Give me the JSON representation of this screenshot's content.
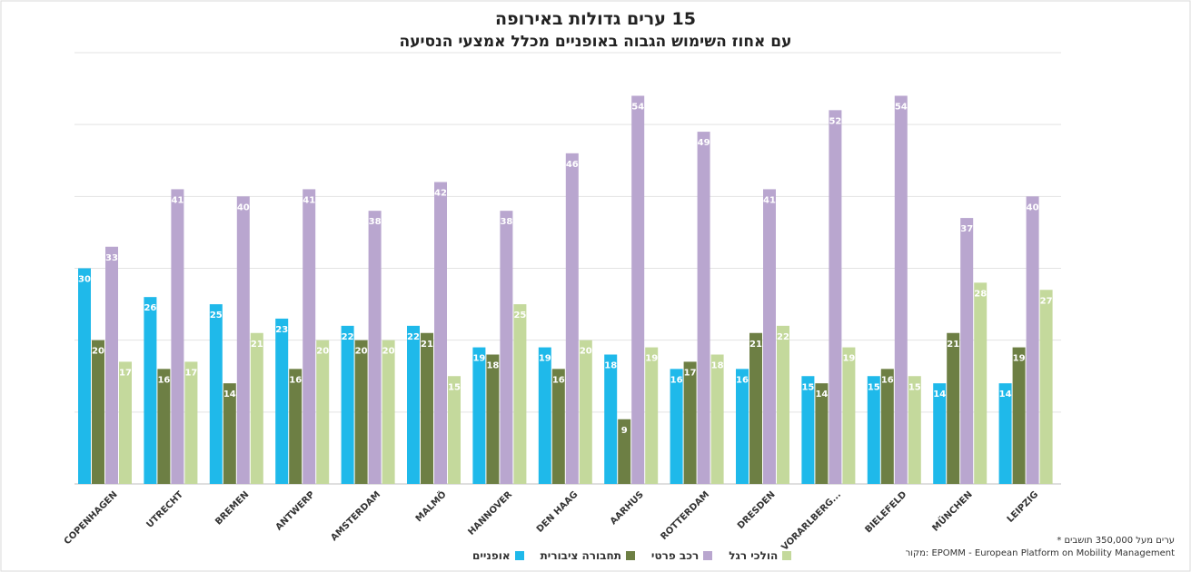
{
  "chart_data": {
    "type": "bar",
    "title": "15 ערים גדולות באירופה",
    "subtitle": "עם אחוז השימוש הגבוה באופניים מכלל אמצעי הנסיעה",
    "categories": [
      "COPENHAGEN",
      "UTRECHT",
      "BREMEN",
      "ANTWERP",
      "AMSTERDAM",
      "MALMÖ",
      "HANNOVER",
      "DEN HAAG",
      "AARHUS",
      "ROTTERDAM",
      "DRESDEN",
      "VORARLBERG...",
      "BIELEFELD",
      "MÜNCHEN",
      "LEIPZIG"
    ],
    "series": [
      {
        "name": "אופניים",
        "color": "#1fb9ea",
        "values": [
          30,
          26,
          25,
          23,
          22,
          22,
          19,
          19,
          18,
          16,
          16,
          15,
          15,
          14,
          14
        ]
      },
      {
        "name": "תחבורה ציבורית",
        "color": "#6d7f44",
        "values": [
          20,
          16,
          14,
          16,
          20,
          21,
          18,
          16,
          9,
          17,
          21,
          14,
          16,
          21,
          19
        ]
      },
      {
        "name": "רכב פרטי",
        "color": "#b9a6cf",
        "values": [
          33,
          41,
          40,
          41,
          38,
          42,
          38,
          46,
          54,
          49,
          41,
          52,
          54,
          37,
          40
        ]
      },
      {
        "name": "הולכי רגל",
        "color": "#c4d99c",
        "values": [
          17,
          17,
          21,
          20,
          20,
          15,
          25,
          20,
          19,
          18,
          22,
          19,
          15,
          28,
          27
        ]
      }
    ],
    "ylim": [
      0,
      60
    ],
    "grid": true,
    "legend": "bottom",
    "xlabel": "",
    "ylabel": ""
  },
  "notes": {
    "footnote": "* ערים מעל 350,000 תושבים",
    "source": "מקור: EPOMM - European Platform on Mobility Management"
  }
}
